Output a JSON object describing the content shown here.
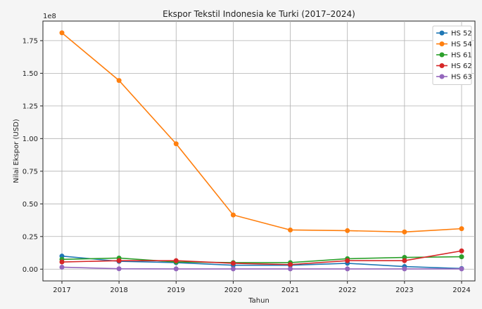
{
  "chart_data": {
    "type": "line",
    "title": "Ekspor Tekstil Indonesia ke Turki (2017–2024)",
    "xlabel": "Tahun",
    "ylabel": "Nilai Ekspor (USD)",
    "y_offset_label": "1e8",
    "categories": [
      "2017",
      "2018",
      "2019",
      "2020",
      "2021",
      "2022",
      "2023",
      "2024"
    ],
    "ylim": [
      -0.09,
      1.9
    ],
    "yticks": [
      "0.00",
      "0.25",
      "0.50",
      "0.75",
      "1.00",
      "1.25",
      "1.50",
      "1.75"
    ],
    "grid": true,
    "legend_position": "top-right",
    "series": [
      {
        "name": "HS 52",
        "color": "#1f77b4",
        "values": [
          0.1,
          0.06,
          0.05,
          0.03,
          0.03,
          0.045,
          0.02,
          0.005
        ]
      },
      {
        "name": "HS 54",
        "color": "#ff7f0e",
        "values": [
          1.81,
          1.445,
          0.96,
          0.415,
          0.3,
          0.295,
          0.285,
          0.31
        ]
      },
      {
        "name": "HS 61",
        "color": "#2ca02c",
        "values": [
          0.075,
          0.085,
          0.055,
          0.05,
          0.05,
          0.08,
          0.09,
          0.095
        ]
      },
      {
        "name": "HS 62",
        "color": "#d62728",
        "values": [
          0.055,
          0.065,
          0.065,
          0.045,
          0.035,
          0.065,
          0.065,
          0.14
        ]
      },
      {
        "name": "HS 63",
        "color": "#9467bd",
        "values": [
          0.015,
          0.003,
          0.002,
          0.002,
          0.002,
          0.002,
          0.002,
          0.002
        ]
      }
    ]
  }
}
